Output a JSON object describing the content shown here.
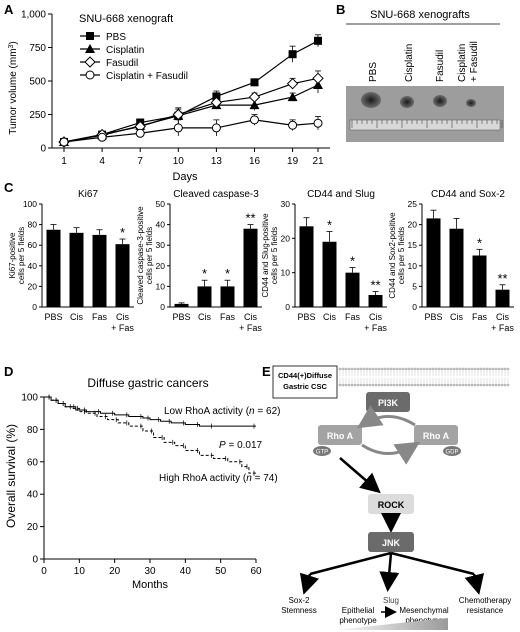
{
  "chart_data": [
    {
      "panel": "A",
      "type": "line",
      "title": "SNU-668 xenograft",
      "xlabel": "Days",
      "ylabel": "Tumor volume (mm3)",
      "x": [
        1,
        4,
        7,
        10,
        13,
        16,
        19,
        21
      ],
      "xticks": [
        "1",
        "4",
        "7",
        "10",
        "13",
        "16",
        "19",
        "21"
      ],
      "ylim": [
        0,
        1000
      ],
      "yticks": [
        "0",
        "250",
        "500",
        "750",
        "1,000"
      ],
      "series": [
        {
          "name": "PBS",
          "marker": "square",
          "values": [
            45,
            100,
            190,
            240,
            385,
            490,
            700,
            800
          ],
          "err": [
            12,
            20,
            25,
            30,
            40,
            25,
            60,
            45
          ]
        },
        {
          "name": "Cisplatin",
          "marker": "triangle",
          "values": [
            45,
            95,
            165,
            240,
            320,
            320,
            380,
            470
          ],
          "err": [
            10,
            20,
            25,
            60,
            30,
            40,
            30,
            60
          ]
        },
        {
          "name": "Fasudil",
          "marker": "diamond",
          "values": [
            45,
            100,
            160,
            250,
            340,
            380,
            480,
            520
          ],
          "err": [
            10,
            20,
            20,
            40,
            35,
            30,
            40,
            55
          ]
        },
        {
          "name": "Cisplatin + Fasudil",
          "marker": "circle",
          "values": [
            45,
            80,
            110,
            150,
            150,
            210,
            170,
            185
          ],
          "err": [
            10,
            20,
            25,
            60,
            60,
            40,
            40,
            50
          ]
        }
      ]
    },
    {
      "panel": "C1",
      "type": "bar",
      "title": "Ki67",
      "ylabel": "Ki67-positive cells per 5 fields",
      "categories": [
        "PBS",
        "Cis",
        "Fas",
        "Cis + Fas"
      ],
      "values": [
        75,
        72,
        70,
        61
      ],
      "err": [
        5,
        5,
        5,
        5
      ],
      "sig": [
        "",
        "",
        "",
        "*"
      ],
      "ylim": [
        0,
        100
      ],
      "yticks": [
        "0",
        "20",
        "40",
        "60",
        "80",
        "100"
      ]
    },
    {
      "panel": "C2",
      "type": "bar",
      "title": "Cleaved caspase-3",
      "ylabel": "Cleaved caspase-3-positive cells per 5 fields",
      "categories": [
        "PBS",
        "Cis",
        "Fas",
        "Cis + Fas"
      ],
      "values": [
        1.5,
        10,
        10,
        38
      ],
      "err": [
        0.5,
        3,
        3,
        2
      ],
      "sig": [
        "",
        "*",
        "*",
        "**"
      ],
      "ylim": [
        0,
        50
      ],
      "yticks": [
        "0",
        "10",
        "20",
        "30",
        "40",
        "50"
      ]
    },
    {
      "panel": "C3",
      "type": "bar",
      "title": "CD44 and Slug",
      "ylabel": "CD44 and Slug-positive cells per 5 fields",
      "categories": [
        "PBS",
        "Cis",
        "Fas",
        "Cis + Fas"
      ],
      "values": [
        23.5,
        19,
        10,
        3.5
      ],
      "err": [
        2.5,
        3,
        1.5,
        1
      ],
      "sig": [
        "",
        "*",
        "*",
        "**"
      ],
      "ylim": [
        0,
        30
      ],
      "yticks": [
        "0",
        "10",
        "20",
        "30"
      ]
    },
    {
      "panel": "C4",
      "type": "bar",
      "title": "CD44 and Sox-2",
      "ylabel": "CD44 and Sox2-positive cells per 5 fields",
      "categories": [
        "PBS",
        "Cis",
        "Fas",
        "Cis + Fas"
      ],
      "values": [
        21.5,
        19,
        12.5,
        4.2
      ],
      "err": [
        2,
        2.5,
        1.5,
        1.2
      ],
      "sig": [
        "",
        "",
        "*",
        "**"
      ],
      "ylim": [
        0,
        25
      ],
      "yticks": [
        "0",
        "5",
        "10",
        "15",
        "20",
        "25"
      ]
    },
    {
      "panel": "D",
      "type": "line",
      "title": "Diffuse gastric cancers",
      "xlabel": "Months",
      "ylabel": "Overall survival (%)",
      "xlim": [
        0,
        60
      ],
      "ylim": [
        0,
        100
      ],
      "xticks": [
        "0",
        "10",
        "20",
        "30",
        "40",
        "50",
        "60"
      ],
      "yticks": [
        "0",
        "20",
        "40",
        "60",
        "80",
        "100"
      ],
      "series": [
        {
          "name": "Low RhoA activity (n = 62)",
          "style": "solid",
          "x": [
            0,
            2,
            4,
            6,
            9,
            12,
            16,
            20,
            24,
            28,
            30,
            33,
            36,
            40,
            44,
            48,
            60
          ],
          "y": [
            100,
            98,
            96,
            94,
            92,
            91,
            90,
            89,
            88,
            87,
            86,
            85,
            84,
            83,
            82,
            82,
            82
          ]
        },
        {
          "name": "High RhoA activity (n = 74)",
          "style": "dashed",
          "x": [
            0,
            2,
            4,
            6,
            8,
            10,
            12,
            15,
            18,
            21,
            24,
            28,
            31,
            34,
            37,
            40,
            44,
            48,
            52,
            56,
            58,
            60
          ],
          "y": [
            100,
            98,
            96,
            94,
            93,
            91,
            90,
            88,
            86,
            84,
            82,
            79,
            75,
            72,
            70,
            67,
            64,
            62,
            60,
            57,
            53,
            52
          ]
        }
      ],
      "annotation": "P = 0.017"
    }
  ],
  "figure": {
    "panel_letters": [
      "A",
      "B",
      "C",
      "D",
      "E"
    ],
    "panel_a_legend": [
      "PBS",
      "Cisplatin",
      "Fasudil",
      "Cisplatin + Fasudil"
    ],
    "panel_b": {
      "title": "SNU-668 xenografts",
      "lanes": [
        "PBS",
        "Cisplatin",
        "Fasudil",
        "Cisplatin + Fasudil"
      ]
    },
    "panel_d": {
      "low_label": "Low RhoA activity (",
      "high_label": "High RhoA activity (",
      "n_low": "n = 62)",
      "n_high": "n = 74)",
      "p_value": "P = 0.017"
    },
    "panel_e": {
      "csc_label": "CD44(+)Diffuse Gastric CSC",
      "pi3k": "PI3K",
      "rhoa_gtp": "Rho A",
      "rhoa_gdp": "Rho A",
      "gtp": "GTP",
      "gdp": "GDP",
      "rock": "ROCK",
      "jnk": "JNK",
      "sox2": "Sox-2",
      "stemness": "Stemness",
      "slug": "Slug",
      "epithelial": "Epithelial phenotype",
      "mesenchymal": "Mesenchymal phenotype",
      "chemo": "Chemotherapy resistance"
    }
  },
  "colors": {
    "bar": "#000000",
    "axis": "#000000",
    "node": "#a3a3a3",
    "node_dark": "#6b6b6b"
  }
}
